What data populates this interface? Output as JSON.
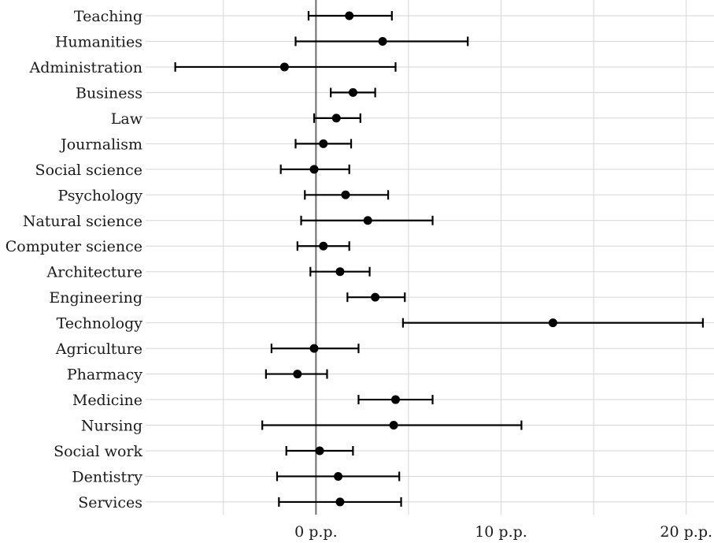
{
  "chart_data": {
    "type": "scatter",
    "subtype": "point-range",
    "title": "",
    "xlabel": "",
    "ylabel": "",
    "xlim": [
      -9.2,
      21.5
    ],
    "grid": true,
    "reference_line_x": 0,
    "x_ticks": [
      {
        "value": 0,
        "label": "0 p.p."
      },
      {
        "value": 10,
        "label": "10 p.p."
      },
      {
        "value": 20,
        "label": "20 p.p."
      }
    ],
    "minor_grid_x": [
      -5,
      5,
      15
    ],
    "categories": [
      "Teaching",
      "Humanities",
      "Administration",
      "Business",
      "Law",
      "Journalism",
      "Social science",
      "Psychology",
      "Natural science",
      "Computer science",
      "Architecture",
      "Engineering",
      "Technology",
      "Agriculture",
      "Pharmacy",
      "Medicine",
      "Nursing",
      "Social work",
      "Dentistry",
      "Services"
    ],
    "estimates": [
      1.8,
      3.6,
      -1.7,
      2.0,
      1.1,
      0.4,
      -0.1,
      1.6,
      2.8,
      0.4,
      1.3,
      3.2,
      12.8,
      -0.1,
      -1.0,
      4.3,
      4.2,
      0.2,
      1.2,
      1.3
    ],
    "lower": [
      -0.4,
      -1.1,
      -7.6,
      0.8,
      -0.1,
      -1.1,
      -1.9,
      -0.6,
      -0.8,
      -1.0,
      -0.3,
      1.7,
      4.7,
      -2.4,
      -2.7,
      2.3,
      -2.9,
      -1.6,
      -2.1,
      -2.0
    ],
    "upper": [
      4.1,
      8.2,
      4.3,
      3.2,
      2.4,
      1.9,
      1.8,
      3.9,
      6.3,
      1.8,
      2.9,
      4.8,
      20.9,
      2.3,
      0.6,
      6.3,
      11.1,
      2.0,
      4.5,
      4.6
    ],
    "colors": {
      "point": "#000000",
      "errorbar": "#000000",
      "grid": "#d6d6d6",
      "zero_line": "#6e6e6e",
      "text": "#1a1a1a",
      "background": "#ffffff"
    }
  }
}
